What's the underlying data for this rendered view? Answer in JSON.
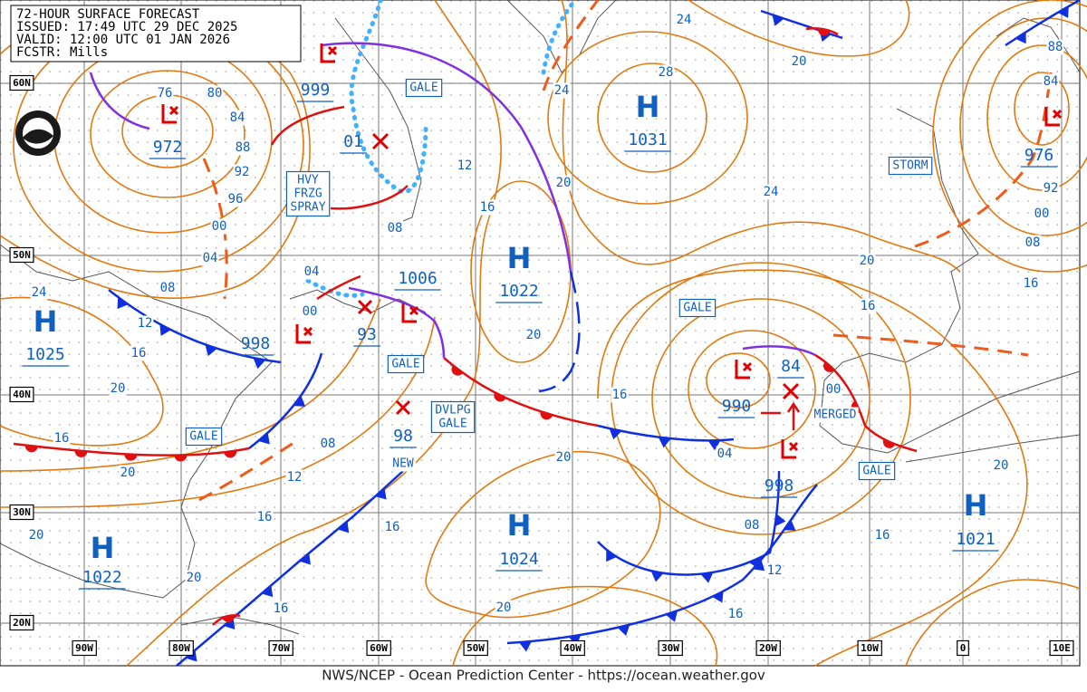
{
  "header": {
    "title": "72-HOUR SURFACE FORECAST",
    "issued": "ISSUED: 17:49 UTC 29 DEC 2025",
    "valid": "VALID: 12:00 UTC 01 JAN 2026",
    "forecaster": "FCSTR: Mills"
  },
  "latitude_labels": [
    "60N",
    "50N",
    "40N",
    "30N",
    "20N"
  ],
  "longitude_labels": [
    "90W",
    "80W",
    "70W",
    "60W",
    "50W",
    "40W",
    "30W",
    "20W",
    "10W",
    "0",
    "10E"
  ],
  "highs": [
    {
      "symbol": "H",
      "pressure": "1031"
    },
    {
      "symbol": "H",
      "pressure": "1022"
    },
    {
      "symbol": "H",
      "pressure": "1025"
    },
    {
      "symbol": "H",
      "pressure": "1022"
    },
    {
      "symbol": "H",
      "pressure": "1024"
    },
    {
      "symbol": "H",
      "pressure": "1021"
    }
  ],
  "lows": [
    "972",
    "999",
    "01",
    "1006",
    "93",
    "998",
    "98",
    "990",
    "84",
    "998",
    "976"
  ],
  "warnings": [
    [
      "GALE"
    ],
    [
      "HVY",
      "FRZG",
      "SPRAY"
    ],
    [
      "GALE"
    ],
    [
      "DVLPG",
      "GALE"
    ],
    [
      "GALE"
    ],
    [
      "GALE"
    ],
    [
      "STORM"
    ],
    [
      "GALE"
    ]
  ],
  "annotations": [
    "MERGED",
    "NEW"
  ],
  "isobar_labels": [
    "76",
    "80",
    "84",
    "88",
    "92",
    "96",
    "00",
    "04",
    "08",
    "24",
    "12",
    "16",
    "20",
    "16",
    "20",
    "08",
    "12",
    "16",
    "20",
    "20",
    "16",
    "16",
    "20",
    "20",
    "16",
    "20",
    "16",
    "12",
    "08",
    "04",
    "00",
    "20",
    "24",
    "28",
    "24",
    "20",
    "24",
    "20",
    "16",
    "16",
    "08",
    "00",
    "92",
    "88",
    "84",
    "04",
    "00",
    "08",
    "12",
    "16",
    "16",
    "20"
  ],
  "footer": "NWS/NCEP - Ocean Prediction Center - https://ocean.weather.gov"
}
